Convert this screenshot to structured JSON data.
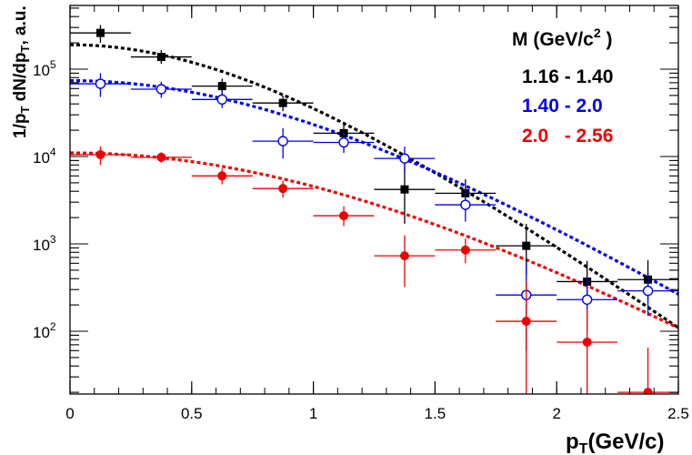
{
  "chart_data": {
    "type": "scatter",
    "xlabel": {
      "base": "p",
      "sub": "T",
      "rest": "(GeV/c)"
    },
    "ylabel": {
      "p1": "1/p",
      "s1": "T",
      "p2": " dN/dp",
      "s2": "T",
      "p3": ", a.u."
    },
    "xlim": [
      0,
      2.5
    ],
    "ylim": [
      18,
      600000
    ],
    "yscale": "log",
    "x_ticks": [
      {
        "value": 0,
        "label": "0"
      },
      {
        "value": 0.5,
        "label": "0.5"
      },
      {
        "value": 1,
        "label": "1"
      },
      {
        "value": 1.5,
        "label": "1.5"
      },
      {
        "value": 2,
        "label": "2"
      },
      {
        "value": 2.5,
        "label": "2.5"
      }
    ],
    "y_ticks": [
      {
        "value": 100,
        "base": "10",
        "exp": "2"
      },
      {
        "value": 1000,
        "base": "10",
        "exp": "3"
      },
      {
        "value": 10000,
        "base": "10",
        "exp": "4"
      },
      {
        "value": 100000,
        "base": "10",
        "exp": "5"
      }
    ],
    "legend": {
      "title": {
        "main": "M (GeV/c",
        "sup": "2",
        "end": " )"
      },
      "position": "top-right"
    },
    "series": [
      {
        "name": "1.16 - 1.40",
        "color": "#000000",
        "marker": "filled-square",
        "x_err": 0.125,
        "points": [
          {
            "x": 0.125,
            "y": 260000,
            "lo": 200000,
            "hi": 320000
          },
          {
            "x": 0.375,
            "y": 138000,
            "lo": 115000,
            "hi": 165000
          },
          {
            "x": 0.625,
            "y": 64000,
            "lo": 52000,
            "hi": 78000
          },
          {
            "x": 0.875,
            "y": 41000,
            "lo": 33000,
            "hi": 50000
          },
          {
            "x": 1.125,
            "y": 18500,
            "lo": 14000,
            "hi": 24000
          },
          {
            "x": 1.375,
            "y": 4200,
            "lo": 1700,
            "hi": 9500
          },
          {
            "x": 1.625,
            "y": 3800,
            "lo": 2400,
            "hi": 5500
          },
          {
            "x": 1.875,
            "y": 950,
            "lo": 450,
            "hi": 1700
          },
          {
            "x": 2.125,
            "y": 370,
            "lo": 210,
            "hi": 640
          },
          {
            "x": 2.375,
            "y": 390,
            "lo": 220,
            "hi": 650
          }
        ],
        "fit": {
          "A": 190000,
          "T": 0.205,
          "m": 1.28
        }
      },
      {
        "name": "1.40 - 2.0",
        "color": "#0000ee",
        "marker": "open-circle",
        "x_err": 0.125,
        "points": [
          {
            "x": 0.125,
            "y": 68000,
            "lo": 48000,
            "hi": 90000
          },
          {
            "x": 0.375,
            "y": 59000,
            "lo": 47000,
            "hi": 72000
          },
          {
            "x": 0.625,
            "y": 45000,
            "lo": 36000,
            "hi": 55000
          },
          {
            "x": 0.875,
            "y": 15000,
            "lo": 9500,
            "hi": 21000
          },
          {
            "x": 1.125,
            "y": 14500,
            "lo": 11000,
            "hi": 19000
          },
          {
            "x": 1.375,
            "y": 9500,
            "lo": 6500,
            "hi": 13000
          },
          {
            "x": 1.625,
            "y": 2800,
            "lo": 1800,
            "hi": 4200
          },
          {
            "x": 1.875,
            "y": 260,
            "lo": 60,
            "hi": 620
          },
          {
            "x": 2.125,
            "y": 230,
            "lo": 100,
            "hi": 420
          },
          {
            "x": 2.375,
            "y": 290,
            "lo": 150,
            "hi": 470
          }
        ],
        "fit": {
          "A": 74000,
          "T": 0.235,
          "m": 1.7
        }
      },
      {
        "name": "2.0   - 2.56",
        "color": "#ee0000",
        "marker": "filled-circle",
        "x_err": 0.125,
        "points": [
          {
            "x": 0.125,
            "y": 10500,
            "lo": 8000,
            "hi": 13000
          },
          {
            "x": 0.375,
            "y": 9800,
            "lo": 8500,
            "hi": 11200
          },
          {
            "x": 0.625,
            "y": 6000,
            "lo": 4800,
            "hi": 7300
          },
          {
            "x": 0.875,
            "y": 4300,
            "lo": 3400,
            "hi": 5300
          },
          {
            "x": 1.125,
            "y": 2100,
            "lo": 1600,
            "hi": 2700
          },
          {
            "x": 1.375,
            "y": 730,
            "lo": 320,
            "hi": 1250
          },
          {
            "x": 1.625,
            "y": 850,
            "lo": 600,
            "hi": 1150
          },
          {
            "x": 1.875,
            "y": 130,
            "lo": 18,
            "hi": 380
          },
          {
            "x": 2.125,
            "y": 75,
            "lo": 18,
            "hi": 180
          },
          {
            "x": 2.375,
            "y": 20,
            "lo": 18,
            "hi": 65
          }
        ],
        "fit": {
          "A": 11000,
          "T": 0.245,
          "m": 2.2
        }
      }
    ]
  }
}
